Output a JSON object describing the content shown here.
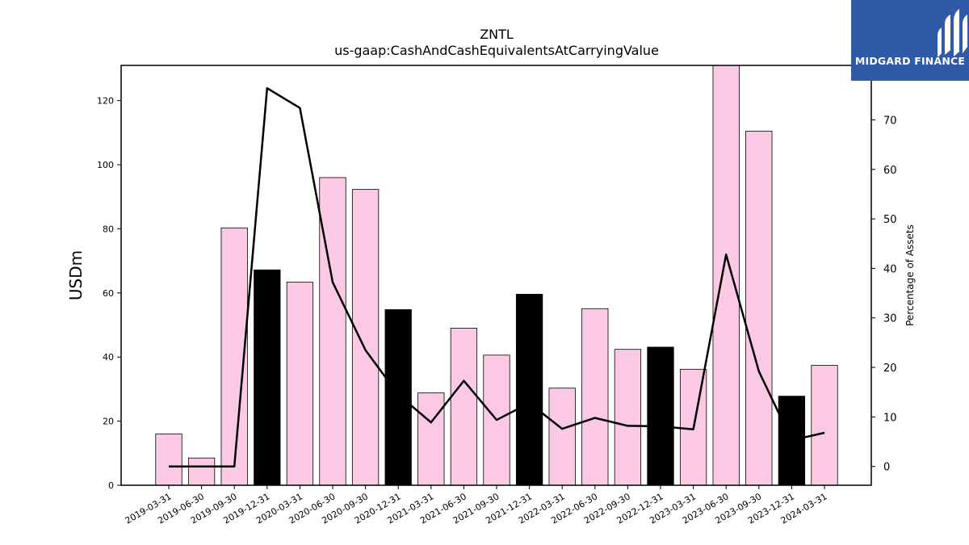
{
  "logo": {
    "text": "MIDGARD FINANCE",
    "background": "#2f5aa8"
  },
  "chart_data": {
    "type": "bar",
    "title": "ZNTL",
    "subtitle": "us-gaap:CashAndCashEquivalentsAtCarryingValue",
    "ylabel": "USDm",
    "y2label": "Percentage of Assets",
    "ylim": [
      0,
      131
    ],
    "y2lim": [
      -3.8,
      81
    ],
    "yticks": [
      0,
      20,
      40,
      60,
      80,
      100,
      120
    ],
    "y2ticks": [
      0,
      10,
      20,
      30,
      40,
      50,
      60,
      70
    ],
    "categories": [
      "2019-03-31",
      "2019-06-30",
      "2019-09-30",
      "2019-12-31",
      "2020-03-31",
      "2020-06-30",
      "2020-09-30",
      "2020-12-31",
      "2021-03-31",
      "2021-06-30",
      "2021-09-30",
      "2021-12-31",
      "2022-03-31",
      "2022-06-30",
      "2022-09-30",
      "2022-12-31",
      "2023-03-31",
      "2023-06-30",
      "2023-09-30",
      "2023-12-31",
      "2024-03-31"
    ],
    "series": [
      {
        "type": "bar",
        "values": [
          16,
          8.5,
          80.3,
          67.2,
          63.4,
          96.0,
          92.3,
          54.8,
          28.8,
          49.0,
          40.6,
          59.6,
          30.3,
          55.1,
          42.4,
          43.1,
          36.2,
          131,
          110.5,
          27.8,
          37.4
        ],
        "colors": [
          "#fbc9e3",
          "#fbc9e3",
          "#fbc9e3",
          "#000000",
          "#fbc9e3",
          "#fbc9e3",
          "#fbc9e3",
          "#000000",
          "#fbc9e3",
          "#fbc9e3",
          "#fbc9e3",
          "#000000",
          "#fbc9e3",
          "#fbc9e3",
          "#fbc9e3",
          "#000000",
          "#fbc9e3",
          "#fbc9e3",
          "#fbc9e3",
          "#000000",
          "#fbc9e3"
        ]
      },
      {
        "type": "line",
        "axis": "right",
        "color": "#000000",
        "values": [
          0,
          0,
          0,
          76.4,
          72.4,
          37.2,
          23.5,
          14.5,
          8.9,
          17.3,
          9.4,
          12.8,
          7.6,
          9.8,
          8.2,
          8.1,
          7.5,
          42.8,
          19.2,
          5.3,
          6.8
        ]
      }
    ]
  }
}
